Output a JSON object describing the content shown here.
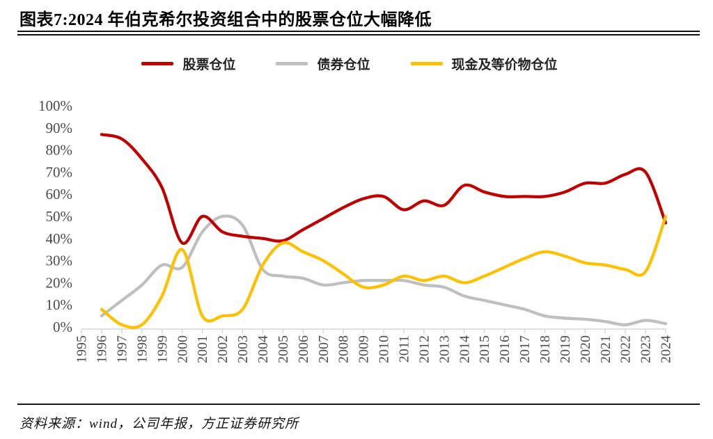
{
  "header": {
    "title": "图表7:2024 年伯克希尔投资组合中的股票仓位大幅降低"
  },
  "footer": {
    "source": "资料来源：wind，公司年报，方正证券研究所"
  },
  "chart_data": {
    "type": "line",
    "title": "2024 年伯克希尔投资组合中的股票仓位大幅降低",
    "x": [
      1996,
      1997,
      1998,
      1999,
      2000,
      2001,
      2002,
      2003,
      2004,
      2005,
      2006,
      2007,
      2008,
      2009,
      2010,
      2011,
      2012,
      2013,
      2014,
      2015,
      2016,
      2017,
      2018,
      2019,
      2020,
      2021,
      2022,
      2023,
      2024
    ],
    "x_tick_labels": [
      "1995",
      "1996",
      "1997",
      "1998",
      "1999",
      "2000",
      "2001",
      "2002",
      "2003",
      "2004",
      "2005",
      "2006",
      "2007",
      "2008",
      "2009",
      "2010",
      "2011",
      "2012",
      "2013",
      "2014",
      "2015",
      "2016",
      "2017",
      "2018",
      "2019",
      "2020",
      "2021",
      "2022",
      "2023",
      "2024"
    ],
    "y_tick_labels": [
      "0%",
      "10%",
      "20%",
      "30%",
      "40%",
      "50%",
      "60%",
      "70%",
      "80%",
      "90%",
      "100%"
    ],
    "ylim": [
      0,
      100
    ],
    "y_unit": "%",
    "grid": false,
    "legend_position": "top",
    "series": [
      {
        "name": "股票仓位",
        "color": "#C00000",
        "values": [
          87,
          85,
          76,
          63,
          38,
          50,
          43,
          41,
          40,
          39,
          44,
          49,
          54,
          58,
          59,
          53,
          57,
          55,
          64,
          61,
          59,
          59,
          59,
          61,
          65,
          65,
          69,
          70,
          47
        ]
      },
      {
        "name": "债券仓位",
        "color": "#BFBFBF",
        "values": [
          5,
          12,
          19,
          28,
          27,
          43,
          50,
          46,
          26,
          23,
          22,
          19,
          20,
          21,
          21,
          21,
          19,
          18,
          14,
          12,
          10,
          8,
          5,
          4,
          3.5,
          2.5,
          1,
          3,
          1.5
        ]
      },
      {
        "name": "现金及等价物仓位",
        "color": "#FFC000",
        "values": [
          8,
          1,
          1,
          14,
          35,
          5,
          5,
          8,
          28,
          38,
          34,
          30,
          24,
          18,
          19,
          23,
          21,
          23,
          20,
          23,
          27,
          31,
          34,
          32,
          29,
          28,
          26,
          25,
          50
        ]
      }
    ],
    "axis_color": "#D6D6D6",
    "label_color": "#4A4A4A"
  }
}
